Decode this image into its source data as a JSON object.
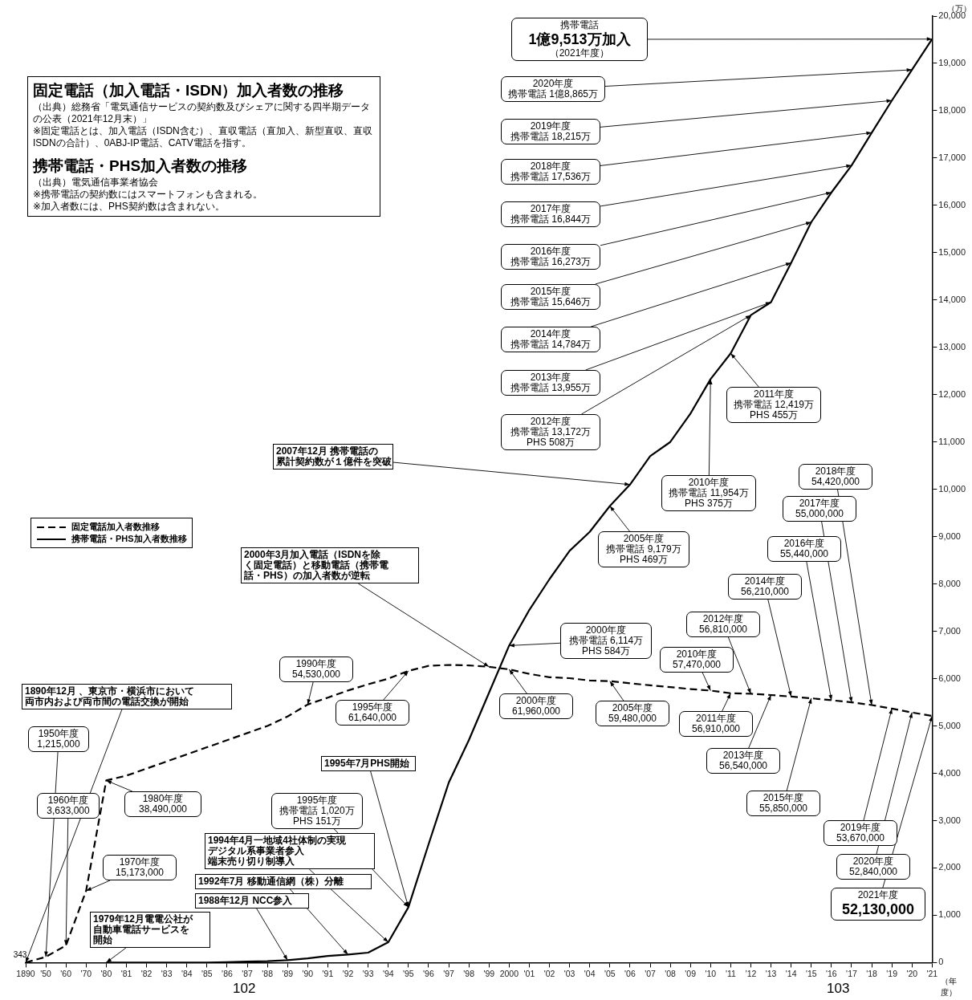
{
  "chart_data": {
    "type": "line",
    "title": "固定電話（加入電話・ISDN）加入者数の推移",
    "subtitle": "携帯電話・PHS加入者数の推移",
    "ylabel": "（万）",
    "xlabel": "（年度）",
    "categories": [
      "1890",
      "'50",
      "'60",
      "'70",
      "'80",
      "'81",
      "'82",
      "'83",
      "'84",
      "'85",
      "'86",
      "'87",
      "'88",
      "'89",
      "'90",
      "'91",
      "'92",
      "'93",
      "'94",
      "'95",
      "'96",
      "'97",
      "'98",
      "'99",
      "2000",
      "'01",
      "'02",
      "'03",
      "'04",
      "'05",
      "'06",
      "'07",
      "'08",
      "'09",
      "'10",
      "'11",
      "'12",
      "'13",
      "'14",
      "'15",
      "'16",
      "'17",
      "'18",
      "'19",
      "'20",
      "'21"
    ],
    "series": [
      {
        "name": "固定電話加入者数推移",
        "color": "#000000",
        "line_style": "dashed",
        "values": [
          0.0343,
          121.5,
          363.3,
          1517.3,
          3849,
          3950,
          4100,
          4250,
          4400,
          4550,
          4700,
          4850,
          5000,
          5200,
          5453,
          5600,
          5750,
          5880,
          6000,
          6164,
          6270,
          6290,
          6280,
          6250,
          6196,
          6100,
          6030,
          6010,
          5960,
          5948,
          5900,
          5860,
          5820,
          5780,
          5747,
          5691,
          5681,
          5654,
          5621,
          5585,
          5544,
          5500,
          5442,
          5367,
          5284,
          5213
        ]
      },
      {
        "name": "携帯電話・PHS加入者数推移",
        "color": "#000000",
        "line_style": "solid",
        "values": [
          null,
          null,
          null,
          null,
          0,
          0,
          0,
          0,
          0,
          0,
          10,
          20,
          30,
          50,
          90,
          140,
          170,
          210,
          430,
          1171,
          2500,
          3800,
          4700,
          5700,
          6698,
          7450,
          8100,
          8700,
          9100,
          9648,
          10100,
          10700,
          11000,
          11600,
          12329,
          12874,
          13680,
          13955,
          14784,
          15646,
          16273,
          16844,
          17536,
          18215,
          18865,
          19513
        ]
      }
    ],
    "ylim": [
      0,
      20000
    ],
    "yticks": [
      0,
      {
        "value": 1000,
        "label": "1,000"
      },
      {
        "value": 2000,
        "label": "2,000"
      },
      {
        "value": 3000,
        "label": "3,000"
      },
      {
        "value": 4000,
        "label": "4,000"
      },
      {
        "value": 5000,
        "label": "5,000"
      },
      {
        "value": 6000,
        "label": "6,000"
      },
      {
        "value": 7000,
        "label": "7,000"
      },
      {
        "value": 8000,
        "label": "8,000"
      },
      {
        "value": 9000,
        "label": "9,000"
      },
      {
        "value": 10000,
        "label": "10,000"
      },
      {
        "value": 11000,
        "label": "11,000"
      },
      {
        "value": 12000,
        "label": "12,000"
      },
      {
        "value": 13000,
        "label": "13,000"
      },
      {
        "value": 14000,
        "label": "14,000"
      },
      {
        "value": 15000,
        "label": "15,000"
      },
      {
        "value": 16000,
        "label": "16,000"
      },
      {
        "value": 17000,
        "label": "17,000"
      },
      {
        "value": 18000,
        "label": "18,000"
      },
      {
        "value": 19000,
        "label": "19,000"
      },
      {
        "value": 20000,
        "label": "20,000"
      }
    ],
    "legend": "left",
    "marker": "none",
    "annotations": [
      "（出典）総務省「電気通信サービスの契約数及びシェアに関する四半期データの公表（2021年12月末）」",
      "※固定電話とは、加入電話（ISDN含む）、直収電話（直加入、新型直収、直収ISDNの合計）、0ABJ-IP電話、CATV電話を指す。",
      "（出典）電気通信事業者協会",
      "※携帯電話の契約数にはスマートフォンも含まれる。",
      "※加入者数には、PHS契約数は含まれない。",
      "102",
      "103",
      {
        "text": "1890年12月 、東京市・横浜市において両市内および両市間の電話交換が開始",
        "x": "1890",
        "y": 0.0343
      },
      {
        "text": "343",
        "x": "1890",
        "y": 0.0343
      },
      {
        "text": "1950年度1,215,000",
        "x": "'50",
        "y": 121.5
      },
      {
        "text": "1960年度3,633,000",
        "x": "'60",
        "y": 363.3
      },
      {
        "text": "1970年度15,173,000",
        "x": "'70",
        "y": 1517.3
      },
      {
        "text": "1980年度38,490,000",
        "x": "'80",
        "y": 3849
      },
      {
        "text": "1990年度54,530,000",
        "x": "'90",
        "y": 5453
      },
      {
        "text": "1995年度61,640,000",
        "x": "'95",
        "y": 6164
      },
      {
        "text": "2000年度61,960,000",
        "x": "2000",
        "y": 6196
      },
      {
        "text": "2005年度59,480,000",
        "x": "'05",
        "y": 5948
      },
      {
        "text": "2010年度57,470,000",
        "x": "'10",
        "y": 5747
      },
      {
        "text": "2011年度56,910,000",
        "x": "'11",
        "y": 5691
      },
      {
        "text": "2012年度56,810,000",
        "x": "'12",
        "y": 5681
      },
      {
        "text": "2013年度56,540,000",
        "x": "'13",
        "y": 5654
      },
      {
        "text": "2014年度56,210,000",
        "x": "'14",
        "y": 5621
      },
      {
        "text": "2015年度55,850,000",
        "x": "'15",
        "y": 5585
      },
      {
        "text": "2016年度55,440,000",
        "x": "'16",
        "y": 5544
      },
      {
        "text": "2017年度55,000,000",
        "x": "'17",
        "y": 5500
      },
      {
        "text": "2018年度54,420,000",
        "x": "'18",
        "y": 5442
      },
      {
        "text": "2019年度53,670,000",
        "x": "'19",
        "y": 5367
      },
      {
        "text": "2020年度52,840,000",
        "x": "'20",
        "y": 5284
      },
      {
        "text": "2021年度52,130,000",
        "x": "'21",
        "y": 5213
      },
      {
        "text": "1995年度携帯電話 1,020万PHS 151万",
        "x": "'95",
        "y": 1171
      },
      {
        "text": "2000年度携帯電話 6,114万PHS 584万",
        "x": "2000",
        "y": 6698
      },
      {
        "text": "2005年度携帯電話 9,179万PHS 469万",
        "x": "'05",
        "y": 9648
      },
      {
        "text": "2010年度携帯電話 11,954万PHS 375万",
        "x": "'10",
        "y": 12329
      },
      {
        "text": "2011年度携帯電話 12,419万PHS 455万",
        "x": "'11",
        "y": 12874
      },
      {
        "text": "2012年度携帯電話 13,172万PHS 508万",
        "x": "'12",
        "y": 13680
      },
      {
        "text": "2013年度携帯電話 13,955万",
        "x": "'13",
        "y": 13955
      },
      {
        "text": "2014年度携帯電話 14,784万",
        "x": "'14",
        "y": 14784
      },
      {
        "text": "2015年度携帯電話 15,646万",
        "x": "'15",
        "y": 15646
      },
      {
        "text": "2016年度携帯電話 16,273万",
        "x": "'16",
        "y": 16273
      },
      {
        "text": "2017年度携帯電話 16,844万",
        "x": "'17",
        "y": 16844
      },
      {
        "text": "2018年度携帯電話 17,536万",
        "x": "'18",
        "y": 17536
      },
      {
        "text": "2019年度携帯電話 18,215万",
        "x": "'19",
        "y": 18215
      },
      {
        "text": "2020年度携帯電話 1億8,865万",
        "x": "'20",
        "y": 18865
      },
      {
        "text": "携帯電話1億9,513万加入（2021年度）",
        "x": "'21",
        "y": 19513
      },
      {
        "text": "1979年12月電電公社が自動車電話サービスを開始",
        "x": "'80",
        "y": 0
      },
      {
        "text": "1988年12月 NCC参入",
        "x": "'89",
        "y": 50
      },
      {
        "text": "1992年7月 移動通信網（株）分離",
        "x": "'92",
        "y": 170
      },
      {
        "text": "1994年4月一地域4社体制の実現デジタル系事業者参入端末売り切り制導入",
        "x": "'94",
        "y": 430
      },
      {
        "text": "1995年7月PHS開始",
        "x": "'95",
        "y": 1171
      },
      {
        "text": "2000年3月加入電話（ISDNを除く固定電話）と移動電話（携帯電話・PHS）の加入者数が逆転",
        "x": "'99",
        "y": 6250
      },
      {
        "text": "2007年12月 携帯電話の累計契約数が１億件を突破",
        "x": "'06",
        "y": 10100
      }
    ]
  }
}
